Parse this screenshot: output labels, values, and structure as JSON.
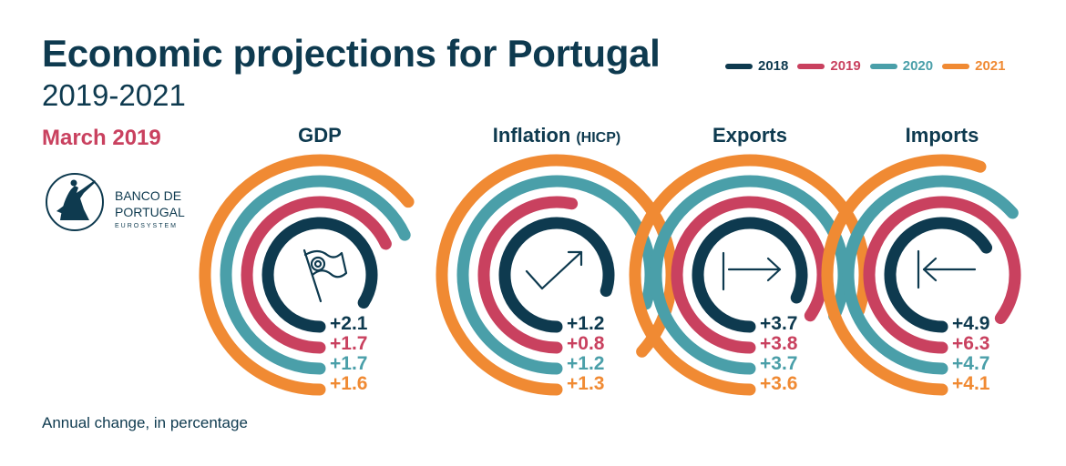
{
  "header": {
    "title": "Economic projections for Portugal",
    "subtitle": "2019-2021",
    "date": "March 2019"
  },
  "footnote": "Annual change, in percentage",
  "logo": {
    "line1": "BANCO DE",
    "line2": "PORTUGAL",
    "line3": "EUROSYSTEM",
    "icon": "allegorical-figure-icon"
  },
  "colors": {
    "2018": "#0e3a4f",
    "2019": "#c9415f",
    "2020": "#4a9fa9",
    "2021": "#f08a33"
  },
  "chart_data": {
    "type": "radial-bar",
    "categories": [
      "GDP",
      "Inflation (HICP)",
      "Exports",
      "Imports"
    ],
    "series": [
      {
        "name": "2018",
        "values": [
          2.1,
          1.2,
          3.7,
          4.9
        ],
        "labels": [
          "+2.1",
          "+1.2",
          "+3.7",
          "+4.9"
        ]
      },
      {
        "name": "2019",
        "values": [
          1.7,
          0.8,
          3.8,
          6.3
        ],
        "labels": [
          "+1.7",
          "+0.8",
          "+3.8",
          "+6.3"
        ]
      },
      {
        "name": "2020",
        "values": [
          1.7,
          1.2,
          3.7,
          4.7
        ],
        "labels": [
          "+1.7",
          "+1.2",
          "+3.7",
          "+4.7"
        ]
      },
      {
        "name": "2021",
        "values": [
          1.6,
          1.3,
          3.6,
          4.1
        ],
        "labels": [
          "+1.6",
          "+1.3",
          "+3.6",
          "+4.1"
        ]
      }
    ],
    "panels": [
      {
        "title": "GDP",
        "title_suffix": "",
        "icon": "flag-icon",
        "max": 2.5
      },
      {
        "title": "Inflation",
        "title_suffix": "(HICP)",
        "icon": "trend-up-arrow-icon",
        "max": 1.5
      },
      {
        "title": "Exports",
        "title_suffix": "",
        "icon": "arrow-right-icon",
        "max": 4.5
      },
      {
        "title": "Imports",
        "title_suffix": "",
        "icon": "arrow-left-icon",
        "max": 7.4
      }
    ],
    "legend_position": "top-right",
    "grid": false
  }
}
